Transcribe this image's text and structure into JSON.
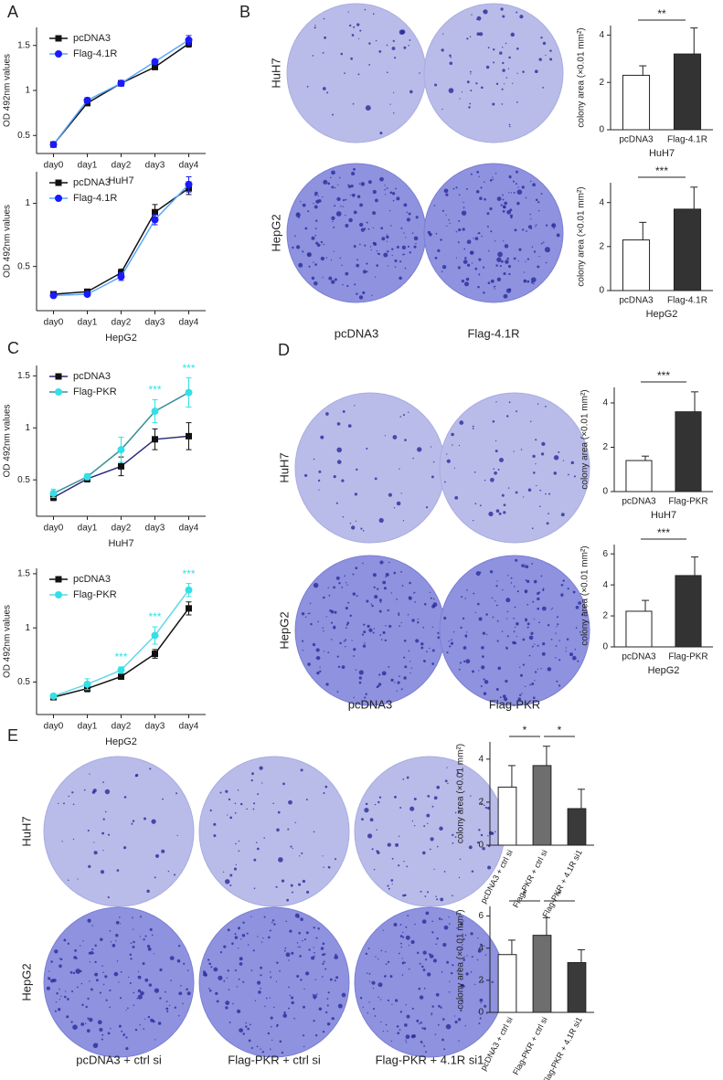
{
  "panel_labels": [
    "A",
    "B",
    "C",
    "D",
    "E"
  ],
  "dish_panels": [
    {
      "rows": [
        "HuH7",
        "HepG2"
      ],
      "columns": [
        "pcDNA3",
        "Flag-4.1R"
      ]
    },
    {
      "rows": [
        "HuH7",
        "HepG2"
      ],
      "columns": [
        "pcDNA3",
        "Flag-PKR"
      ]
    },
    {
      "rows": [
        "HuH7",
        "HepG2"
      ],
      "columns": [
        "pcDNA3  + ctrl si",
        "Flag-PKR + ctrl si",
        "Flag-PKR + 4.1R si1"
      ]
    }
  ],
  "chart_data": [
    {
      "type": "line",
      "y_label": "OD 492nm values",
      "x_label": "HuH7",
      "categories": [
        "day0",
        "day1",
        "day2",
        "day3",
        "day4"
      ],
      "ylim": [
        0.3,
        1.7
      ],
      "yticks": [
        0.5,
        1,
        1.5
      ],
      "series": [
        {
          "name": "pcDNA3",
          "color": "#111111",
          "marker_color": "#111111",
          "marker": "square",
          "values": [
            0.4,
            0.86,
            1.08,
            1.26,
            1.52
          ],
          "errors": [
            0.02,
            0.03,
            0.03,
            0.02,
            0.04
          ]
        },
        {
          "name": "Flag-4.1R",
          "color": "#5aa8ff",
          "marker_color": "#1a1aff",
          "marker": "circle",
          "values": [
            0.4,
            0.89,
            1.08,
            1.32,
            1.56
          ],
          "errors": [
            0.02,
            0.03,
            0.03,
            0.02,
            0.05
          ]
        }
      ]
    },
    {
      "type": "line",
      "y_label": "OD 492nm values",
      "x_label": "HepG2",
      "categories": [
        "day0",
        "day1",
        "day2",
        "day3",
        "day4"
      ],
      "ylim": [
        0.15,
        1.25
      ],
      "yticks": [
        0.5,
        1
      ],
      "series": [
        {
          "name": "pcDNA3",
          "color": "#111111",
          "marker_color": "#111111",
          "marker": "square",
          "values": [
            0.28,
            0.3,
            0.45,
            0.93,
            1.12
          ],
          "errors": [
            0.01,
            0.01,
            0.03,
            0.06,
            0.05
          ]
        },
        {
          "name": "Flag-4.1R",
          "color": "#5aa8ff",
          "marker_color": "#1a1aff",
          "marker": "circle",
          "values": [
            0.27,
            0.28,
            0.42,
            0.87,
            1.15
          ],
          "errors": [
            0.01,
            0.01,
            0.03,
            0.04,
            0.06
          ]
        }
      ]
    },
    {
      "type": "bar",
      "y_label": "colony area (×0.01 mm²)",
      "x_label": "HuH7",
      "categories": [
        "pcDNA3",
        "Flag-4.1R"
      ],
      "values": [
        2.3,
        3.2
      ],
      "errors": [
        0.4,
        1.1
      ],
      "colors": [
        "#ffffff",
        "#333333"
      ],
      "ylim": [
        0,
        4.4
      ],
      "yticks": [
        0,
        2,
        4
      ],
      "significance": [
        "**"
      ]
    },
    {
      "type": "bar",
      "y_label": "colony area (×0.01 mm²)",
      "x_label": "HepG2",
      "categories": [
        "pcDNA3",
        "Flag-4.1R"
      ],
      "values": [
        2.3,
        3.7
      ],
      "errors": [
        0.8,
        1.0
      ],
      "colors": [
        "#ffffff",
        "#333333"
      ],
      "ylim": [
        0,
        4.9
      ],
      "yticks": [
        0,
        2,
        4
      ],
      "significance": [
        "***"
      ]
    },
    {
      "type": "line",
      "y_label": "OD 492nm values",
      "x_label": "HuH7",
      "categories": [
        "day0",
        "day1",
        "day2",
        "day3",
        "day4"
      ],
      "ylim": [
        0.15,
        1.6
      ],
      "yticks": [
        0.5,
        1,
        1.5
      ],
      "series": [
        {
          "name": "pcDNA3",
          "color": "#2b2b7a",
          "marker_color": "#111111",
          "marker": "square",
          "values": [
            0.33,
            0.51,
            0.63,
            0.89,
            0.92
          ],
          "errors": [
            0.03,
            0.03,
            0.09,
            0.1,
            0.13
          ]
        },
        {
          "name": "Flag-PKR",
          "color": "#3a8f9a",
          "marker_color": "#33e0e8",
          "marker": "circle",
          "values": [
            0.37,
            0.53,
            0.79,
            1.16,
            1.34
          ],
          "errors": [
            0.04,
            0.03,
            0.12,
            0.11,
            0.14
          ],
          "annotations": [
            null,
            null,
            null,
            "***",
            "***"
          ]
        }
      ]
    },
    {
      "type": "line",
      "y_label": "OD 492nm values",
      "x_label": "HepG2",
      "categories": [
        "day0",
        "day1",
        "day2",
        "day3",
        "day4"
      ],
      "ylim": [
        0.2,
        1.55
      ],
      "yticks": [
        0.5,
        1,
        1.5
      ],
      "series": [
        {
          "name": "pcDNA3",
          "color": "#111111",
          "marker_color": "#111111",
          "marker": "square",
          "values": [
            0.36,
            0.44,
            0.55,
            0.76,
            1.18
          ],
          "errors": [
            0.02,
            0.03,
            0.02,
            0.04,
            0.06
          ]
        },
        {
          "name": "Flag-PKR",
          "color": "#5fd8e8",
          "marker_color": "#33e0e8",
          "marker": "circle",
          "values": [
            0.37,
            0.48,
            0.61,
            0.93,
            1.35
          ],
          "errors": [
            0.02,
            0.05,
            0.03,
            0.08,
            0.06
          ],
          "annotations": [
            null,
            null,
            "***",
            "***",
            "***"
          ]
        }
      ]
    },
    {
      "type": "bar",
      "y_label": "colony area (×0.01 mm²)",
      "x_label": "HuH7",
      "categories": [
        "pcDNA3",
        "Flag-PKR"
      ],
      "values": [
        1.4,
        3.6
      ],
      "errors": [
        0.2,
        0.9
      ],
      "colors": [
        "#ffffff",
        "#333333"
      ],
      "ylim": [
        0,
        4.7
      ],
      "yticks": [
        0,
        2,
        4
      ],
      "significance": [
        "***"
      ]
    },
    {
      "type": "bar",
      "y_label": "colony area (×0.01 mm²)",
      "x_label": "HepG2",
      "categories": [
        "pcDNA3",
        "Flag-PKR"
      ],
      "values": [
        2.3,
        4.6
      ],
      "errors": [
        0.7,
        1.2
      ],
      "colors": [
        "#ffffff",
        "#333333"
      ],
      "ylim": [
        0,
        6.6
      ],
      "yticks": [
        0,
        2,
        4,
        6
      ],
      "significance": [
        "***"
      ]
    },
    {
      "type": "bar",
      "y_label": "colony area (×0.01 mm²)",
      "categories": [
        "pcDNA3 + ctrl si",
        "Flag-PKR + ctrl si",
        "Flag-PKR + 4.1R si1"
      ],
      "values": [
        2.7,
        3.7,
        1.7
      ],
      "errors": [
        1.0,
        0.9,
        0.9
      ],
      "colors": [
        "#ffffff",
        "#6e6e6e",
        "#3a3a3a"
      ],
      "ylim": [
        0,
        4.8
      ],
      "yticks": [
        0,
        2,
        4
      ],
      "significance": [
        "*",
        "*"
      ]
    },
    {
      "type": "bar",
      "y_label": "colony area (×0.01 mm²)",
      "categories": [
        "pcDNA3 + ctrl si",
        "Flag-PKR + ctrl si",
        "Flag-PKR + 4.1R si1"
      ],
      "values": [
        3.6,
        4.8,
        3.1
      ],
      "errors": [
        0.9,
        1.1,
        0.8
      ],
      "colors": [
        "#ffffff",
        "#6e6e6e",
        "#3a3a3a"
      ],
      "ylim": [
        0,
        6.6
      ],
      "yticks": [
        0,
        2,
        4,
        6
      ],
      "significance": [
        "*",
        "*"
      ]
    }
  ]
}
